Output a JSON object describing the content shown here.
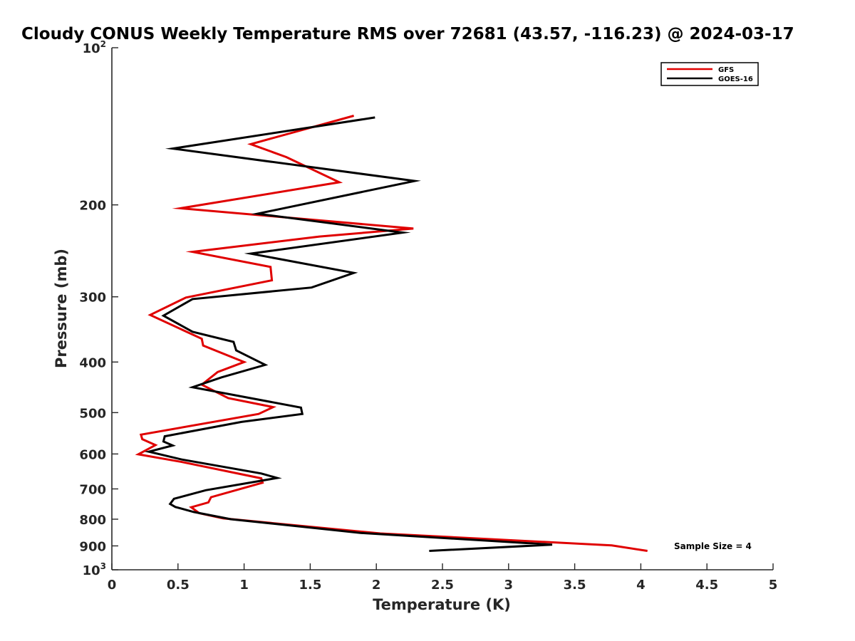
{
  "chart_data": {
    "type": "line",
    "title": "Cloudy CONUS Weekly Temperature RMS over 72681 (43.57, -116.23) @ 2024-03-17",
    "xlabel": "Temperature (K)",
    "ylabel": "Pressure (mb)",
    "xlim": [
      0,
      5
    ],
    "ylim": [
      100,
      1000
    ],
    "y_scale": "log",
    "y_reversed": true,
    "grid": false,
    "legend_position": "top-right",
    "x_ticks": [
      "0",
      "0.5",
      "1",
      "1.5",
      "2",
      "2.5",
      "3",
      "3.5",
      "4",
      "4.5",
      "5"
    ],
    "y_ticks": [
      {
        "value": 100,
        "base": "10",
        "exp": "2"
      },
      {
        "value": 200,
        "label": "200"
      },
      {
        "value": 300,
        "label": "300"
      },
      {
        "value": 400,
        "label": "400"
      },
      {
        "value": 500,
        "label": "500"
      },
      {
        "value": 600,
        "label": "600"
      },
      {
        "value": 700,
        "label": "700"
      },
      {
        "value": 800,
        "label": "800"
      },
      {
        "value": 900,
        "label": "900"
      },
      {
        "value": 1000,
        "base": "10",
        "exp": "3"
      }
    ],
    "annotation": "Sample Size = 4",
    "series": [
      {
        "name": "GFS",
        "color": "#e00000",
        "points": [
          [
            1.83,
            135
          ],
          [
            1.05,
            153
          ],
          [
            1.32,
            162
          ],
          [
            1.72,
            181
          ],
          [
            0.52,
            203
          ],
          [
            2.28,
            222
          ],
          [
            1.57,
            230
          ],
          [
            0.61,
            246
          ],
          [
            1.2,
            263
          ],
          [
            1.21,
            279
          ],
          [
            0.56,
            301
          ],
          [
            0.29,
            325
          ],
          [
            0.68,
            361
          ],
          [
            0.69,
            372
          ],
          [
            1.0,
            400
          ],
          [
            0.8,
            418
          ],
          [
            0.68,
            442
          ],
          [
            0.88,
            469
          ],
          [
            1.22,
            488
          ],
          [
            1.11,
            503
          ],
          [
            0.22,
            551
          ],
          [
            0.23,
            562
          ],
          [
            0.33,
            577
          ],
          [
            0.2,
            601
          ],
          [
            0.52,
            621
          ],
          [
            1.13,
            668
          ],
          [
            1.14,
            681
          ],
          [
            0.75,
            726
          ],
          [
            0.73,
            743
          ],
          [
            0.6,
            759
          ],
          [
            0.66,
            779
          ],
          [
            0.84,
            797
          ],
          [
            2.03,
            852
          ],
          [
            3.78,
            898
          ],
          [
            4.05,
            920
          ]
        ]
      },
      {
        "name": "GOES-16",
        "color": "#000000",
        "points": [
          [
            1.99,
            136
          ],
          [
            0.46,
            156
          ],
          [
            2.29,
            180
          ],
          [
            1.1,
            208
          ],
          [
            2.2,
            226
          ],
          [
            1.05,
            248
          ],
          [
            1.83,
            270
          ],
          [
            1.51,
            288
          ],
          [
            0.61,
            303
          ],
          [
            0.39,
            326
          ],
          [
            0.61,
            350
          ],
          [
            0.92,
            366
          ],
          [
            0.94,
            380
          ],
          [
            1.16,
            405
          ],
          [
            0.83,
            428
          ],
          [
            0.61,
            447
          ],
          [
            1.43,
            489
          ],
          [
            1.44,
            503
          ],
          [
            0.98,
            521
          ],
          [
            0.4,
            555
          ],
          [
            0.39,
            568
          ],
          [
            0.46,
            578
          ],
          [
            0.28,
            594
          ],
          [
            0.53,
            615
          ],
          [
            1.13,
            654
          ],
          [
            1.25,
            667
          ],
          [
            0.71,
            704
          ],
          [
            0.47,
            731
          ],
          [
            0.44,
            748
          ],
          [
            0.48,
            758
          ],
          [
            0.62,
            775
          ],
          [
            0.9,
            800
          ],
          [
            1.88,
            850
          ],
          [
            3.33,
            895
          ],
          [
            2.4,
            920
          ]
        ]
      }
    ]
  }
}
